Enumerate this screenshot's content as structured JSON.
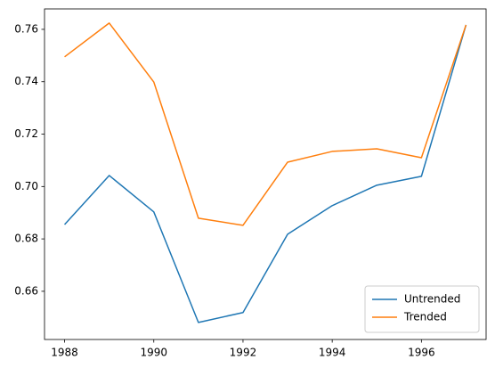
{
  "chart_data": {
    "type": "line",
    "x": [
      1988,
      1989,
      1990,
      1991,
      1992,
      1993,
      1994,
      1995,
      1996,
      1997
    ],
    "series": [
      {
        "name": "Untrended",
        "color": "#1f77b4",
        "values": [
          0.6855,
          0.7042,
          0.6903,
          0.6481,
          0.6519,
          0.6818,
          0.6927,
          0.7005,
          0.7039,
          0.7617
        ]
      },
      {
        "name": "Trended",
        "color": "#ff7f0e",
        "values": [
          0.7495,
          0.7624,
          0.7399,
          0.6879,
          0.6852,
          0.7093,
          0.7134,
          0.7144,
          0.711,
          0.7617
        ]
      }
    ],
    "xlim": [
      1987.55,
      1997.45
    ],
    "xticks": [
      1988,
      1990,
      1992,
      1994,
      1996
    ],
    "ylim": [
      0.6416,
      0.7678
    ],
    "yticks": [
      0.66,
      0.68,
      {
        "value": 0.7,
        "label": "0.70"
      },
      0.72,
      0.74,
      0.76
    ],
    "legend": "lower right"
  }
}
